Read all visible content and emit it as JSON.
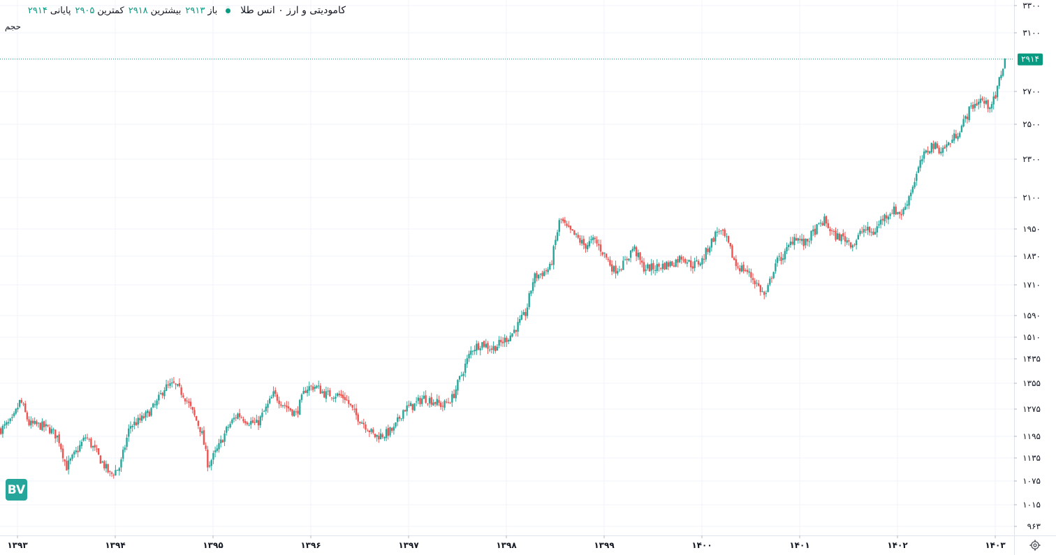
{
  "header": {
    "title": "کامودیتی و ارز ۰ انس طلا",
    "open_label": "باز",
    "open_value": "۲۹۱۳",
    "high_label": "بیشترین",
    "high_value": "۲۹۱۸",
    "low_label": "کمترین",
    "low_value": "۲۹۰۵",
    "close_label": "پایانی",
    "close_value": "۲۹۱۴",
    "volume_label": "حجم"
  },
  "logo": {
    "text": "BV"
  },
  "icons": {
    "settings": "settings-gear-icon",
    "status": "status-dot-icon"
  },
  "colors": {
    "up": "#26a69a",
    "down": "#ef5350",
    "price_badge": "#089981",
    "grid": "#f0f3fa"
  },
  "chart_data": {
    "type": "candlestick",
    "scale": "log",
    "grid": true,
    "last_price": 2914,
    "last_price_label": "۲۹۱۴",
    "ylim": [
      940,
      3330
    ],
    "y_ticks": [
      {
        "value": 3300,
        "label": "۳۳۰۰"
      },
      {
        "value": 3100,
        "label": "۳۱۰۰"
      },
      {
        "value": 2700,
        "label": "۲۷۰۰"
      },
      {
        "value": 2500,
        "label": "۲۵۰۰"
      },
      {
        "value": 2300,
        "label": "۲۳۰۰"
      },
      {
        "value": 2100,
        "label": "۲۱۰۰"
      },
      {
        "value": 1950,
        "label": "۱۹۵۰"
      },
      {
        "value": 1830,
        "label": "۱۸۳۰"
      },
      {
        "value": 1710,
        "label": "۱۷۱۰"
      },
      {
        "value": 1590,
        "label": "۱۵۹۰"
      },
      {
        "value": 1510,
        "label": "۱۵۱۰"
      },
      {
        "value": 1435,
        "label": "۱۴۳۵"
      },
      {
        "value": 1355,
        "label": "۱۳۵۵"
      },
      {
        "value": 1275,
        "label": "۱۲۷۵"
      },
      {
        "value": 1195,
        "label": "۱۱۹۵"
      },
      {
        "value": 1135,
        "label": "۱۱۳۵"
      },
      {
        "value": 1075,
        "label": "۱۰۷۵"
      },
      {
        "value": 1015,
        "label": "۱۰۱۵"
      },
      {
        "value": 963,
        "label": "۹۶۳"
      }
    ],
    "x_ticks": [
      {
        "year": 1393,
        "label": "۱۳۹۳"
      },
      {
        "year": 1394,
        "label": "۱۳۹۴"
      },
      {
        "year": 1395,
        "label": "۱۳۹۵"
      },
      {
        "year": 1396,
        "label": "۱۳۹۶"
      },
      {
        "year": 1397,
        "label": "۱۳۹۷"
      },
      {
        "year": 1398,
        "label": "۱۳۹۸"
      },
      {
        "year": 1399,
        "label": "۱۳۹۹"
      },
      {
        "year": 1400,
        "label": "۱۴۰۰"
      },
      {
        "year": 1401,
        "label": "۱۴۰۱"
      },
      {
        "year": 1402,
        "label": "۱۴۰۲"
      },
      {
        "year": 1403,
        "label": "۱۴۰۳"
      }
    ],
    "period": "weekly",
    "x_start": 1392.83,
    "x_step_years": 0.01923,
    "close_path": [
      [
        1392.83,
        1215
      ],
      [
        1392.95,
        1240
      ],
      [
        1393.03,
        1302
      ],
      [
        1393.12,
        1230
      ],
      [
        1393.25,
        1225
      ],
      [
        1393.33,
        1215
      ],
      [
        1393.42,
        1190
      ],
      [
        1393.5,
        1110
      ],
      [
        1393.6,
        1150
      ],
      [
        1393.7,
        1195
      ],
      [
        1393.85,
        1130
      ],
      [
        1393.95,
        1090
      ],
      [
        1394.05,
        1112
      ],
      [
        1394.15,
        1225
      ],
      [
        1394.25,
        1240
      ],
      [
        1394.33,
        1260
      ],
      [
        1394.42,
        1290
      ],
      [
        1394.5,
        1340
      ],
      [
        1394.6,
        1350
      ],
      [
        1394.7,
        1320
      ],
      [
        1394.75,
        1290
      ],
      [
        1394.88,
        1210
      ],
      [
        1394.95,
        1115
      ],
      [
        1395.05,
        1160
      ],
      [
        1395.15,
        1220
      ],
      [
        1395.25,
        1260
      ],
      [
        1395.35,
        1240
      ],
      [
        1395.45,
        1230
      ],
      [
        1395.55,
        1280
      ],
      [
        1395.62,
        1320
      ],
      [
        1395.72,
        1290
      ],
      [
        1395.85,
        1260
      ],
      [
        1395.95,
        1340
      ],
      [
        1396.05,
        1345
      ],
      [
        1396.15,
        1320
      ],
      [
        1396.25,
        1320
      ],
      [
        1396.35,
        1310
      ],
      [
        1396.45,
        1260
      ],
      [
        1396.55,
        1230
      ],
      [
        1396.65,
        1195
      ],
      [
        1396.75,
        1200
      ],
      [
        1396.85,
        1215
      ],
      [
        1396.95,
        1275
      ],
      [
        1397.05,
        1285
      ],
      [
        1397.15,
        1310
      ],
      [
        1397.25,
        1300
      ],
      [
        1397.35,
        1285
      ],
      [
        1397.45,
        1310
      ],
      [
        1397.55,
        1390
      ],
      [
        1397.65,
        1470
      ],
      [
        1397.75,
        1490
      ],
      [
        1397.85,
        1470
      ],
      [
        1397.95,
        1490
      ],
      [
        1398.05,
        1520
      ],
      [
        1398.12,
        1555
      ],
      [
        1398.2,
        1600
      ],
      [
        1398.28,
        1740
      ],
      [
        1398.37,
        1760
      ],
      [
        1398.45,
        1780
      ],
      [
        1398.55,
        2000
      ],
      [
        1398.62,
        1950
      ],
      [
        1398.7,
        1920
      ],
      [
        1398.8,
        1875
      ],
      [
        1398.9,
        1900
      ],
      [
        1399.0,
        1840
      ],
      [
        1399.1,
        1770
      ],
      [
        1399.2,
        1795
      ],
      [
        1399.3,
        1870
      ],
      [
        1399.4,
        1780
      ],
      [
        1399.5,
        1780
      ],
      [
        1399.6,
        1790
      ],
      [
        1399.7,
        1800
      ],
      [
        1399.8,
        1830
      ],
      [
        1399.9,
        1790
      ],
      [
        1400.0,
        1810
      ],
      [
        1400.08,
        1880
      ],
      [
        1400.17,
        1950
      ],
      [
        1400.25,
        1900
      ],
      [
        1400.35,
        1790
      ],
      [
        1400.45,
        1770
      ],
      [
        1400.55,
        1720
      ],
      [
        1400.65,
        1660
      ],
      [
        1400.75,
        1800
      ],
      [
        1400.85,
        1840
      ],
      [
        1400.95,
        1920
      ],
      [
        1401.05,
        1880
      ],
      [
        1401.15,
        1940
      ],
      [
        1401.25,
        1990
      ],
      [
        1401.35,
        1920
      ],
      [
        1401.45,
        1910
      ],
      [
        1401.55,
        1880
      ],
      [
        1401.65,
        1950
      ],
      [
        1401.75,
        1930
      ],
      [
        1401.85,
        2000
      ],
      [
        1401.95,
        2040
      ],
      [
        1402.05,
        2020
      ],
      [
        1402.15,
        2150
      ],
      [
        1402.25,
        2300
      ],
      [
        1402.35,
        2380
      ],
      [
        1402.45,
        2350
      ],
      [
        1402.55,
        2400
      ],
      [
        1402.65,
        2480
      ],
      [
        1402.75,
        2600
      ],
      [
        1402.85,
        2650
      ],
      [
        1402.92,
        2610
      ],
      [
        1403.0,
        2650
      ],
      [
        1403.05,
        2800
      ],
      [
        1403.1,
        2914
      ]
    ]
  }
}
